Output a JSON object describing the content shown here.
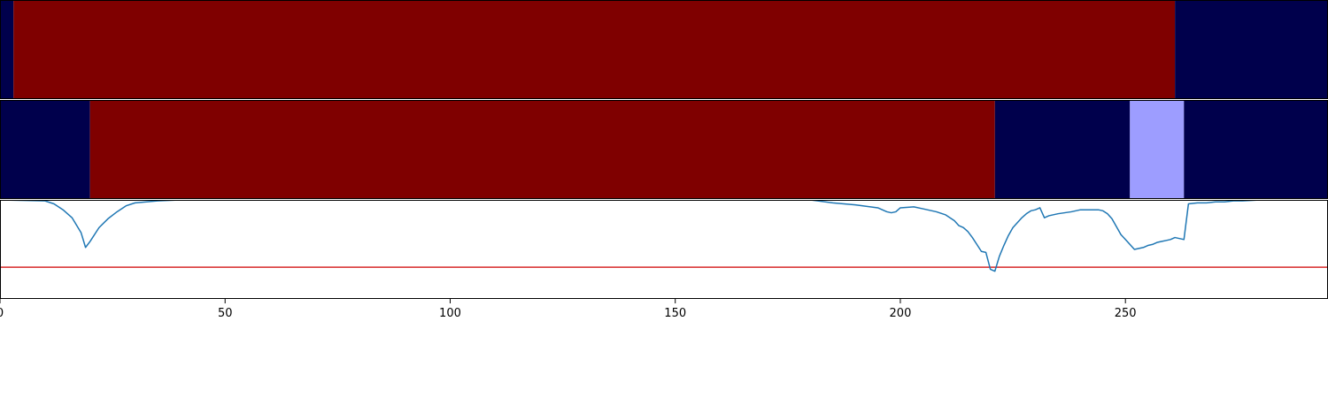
{
  "chart_data": {
    "type": "line",
    "xlim": [
      0,
      295
    ],
    "xticks": [
      0,
      50,
      100,
      150,
      200,
      250
    ],
    "tick_labels": [
      "0",
      "50",
      "100",
      "150",
      "200",
      "250"
    ],
    "grid": false,
    "bands": [
      {
        "segments": [
          {
            "start": 0,
            "end": 3,
            "color": "#00004c"
          },
          {
            "start": 3,
            "end": 261,
            "color": "#7f0000"
          },
          {
            "start": 261,
            "end": 295,
            "color": "#00004c"
          }
        ]
      },
      {
        "segments": [
          {
            "start": 0,
            "end": 20,
            "color": "#00004c"
          },
          {
            "start": 20,
            "end": 221,
            "color": "#7f0000"
          },
          {
            "start": 221,
            "end": 251,
            "color": "#00004c"
          },
          {
            "start": 251,
            "end": 263,
            "color": "#9d9dff"
          },
          {
            "start": 263,
            "end": 295,
            "color": "#00004c"
          }
        ]
      }
    ],
    "line_panel": {
      "ylim": [
        0,
        1
      ],
      "threshold": 0.32,
      "threshold_color": "#d62728",
      "line_color": "#1f77b4",
      "series": [
        {
          "x": [
            0,
            10,
            12,
            14,
            16,
            18,
            19,
            20,
            22,
            24,
            26,
            28,
            30,
            35,
            40,
            70,
            100,
            180,
            185,
            190,
            195,
            197,
            198,
            199,
            200,
            203,
            205,
            208,
            210,
            211,
            212,
            213,
            214,
            215,
            216,
            217,
            218,
            219,
            220,
            221,
            222,
            223,
            224,
            225,
            226,
            227,
            228,
            229,
            230,
            231,
            232,
            233,
            235,
            238,
            240,
            242,
            244,
            245,
            246,
            247,
            248,
            249,
            250,
            251,
            252,
            253,
            254,
            255,
            256,
            257,
            258,
            259,
            260,
            261,
            262,
            263,
            264,
            266,
            268,
            270,
            272,
            274,
            276,
            280,
            285,
            290,
            295
          ],
          "y": [
            1.0,
            0.99,
            0.96,
            0.9,
            0.82,
            0.67,
            0.52,
            0.58,
            0.72,
            0.81,
            0.88,
            0.94,
            0.97,
            0.99,
            1.0,
            1.0,
            1.0,
            1.0,
            0.97,
            0.95,
            0.92,
            0.88,
            0.87,
            0.88,
            0.92,
            0.93,
            0.91,
            0.88,
            0.85,
            0.82,
            0.79,
            0.74,
            0.72,
            0.68,
            0.62,
            0.55,
            0.48,
            0.47,
            0.3,
            0.28,
            0.43,
            0.54,
            0.64,
            0.72,
            0.77,
            0.82,
            0.86,
            0.89,
            0.9,
            0.92,
            0.82,
            0.84,
            0.86,
            0.88,
            0.9,
            0.9,
            0.9,
            0.89,
            0.86,
            0.81,
            0.73,
            0.65,
            0.6,
            0.55,
            0.5,
            0.51,
            0.52,
            0.54,
            0.55,
            0.57,
            0.58,
            0.59,
            0.6,
            0.62,
            0.61,
            0.6,
            0.96,
            0.97,
            0.97,
            0.98,
            0.98,
            0.99,
            0.99,
            1.0,
            1.0,
            1.0,
            1.0
          ]
        }
      ]
    }
  }
}
